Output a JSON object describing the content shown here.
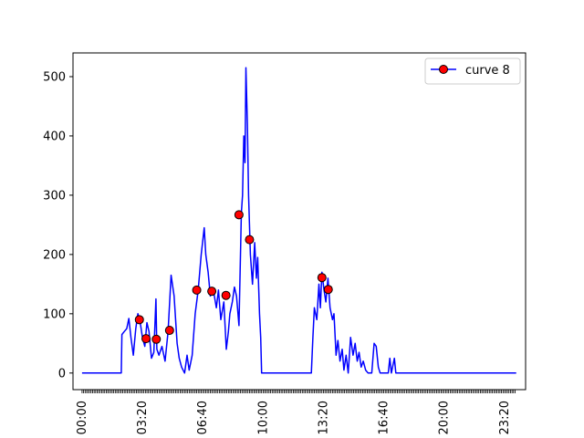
{
  "chart_data": {
    "type": "line",
    "title": "",
    "xlabel": "",
    "ylabel": "",
    "x_unit": "time of day (HH:MM)",
    "xlim": [
      "00:00",
      "23:59"
    ],
    "ylim": [
      -28,
      540
    ],
    "grid": false,
    "legend_position": "top-right",
    "x_ticks": [
      "00:00",
      "03:20",
      "06:40",
      "10:00",
      "13:20",
      "16:40",
      "20:00",
      "23:20"
    ],
    "y_ticks": [
      0,
      100,
      200,
      300,
      400,
      500
    ],
    "series": [
      {
        "name": "curve 8",
        "color": "#0000ff",
        "marker_color": "#ff0000",
        "marker_edge_color": "#000000",
        "line": [
          [
            "00:00",
            0
          ],
          [
            "02:10",
            0
          ],
          [
            "02:12",
            65
          ],
          [
            "02:20",
            70
          ],
          [
            "02:28",
            75
          ],
          [
            "02:35",
            92
          ],
          [
            "02:42",
            60
          ],
          [
            "02:50",
            30
          ],
          [
            "02:58",
            75
          ],
          [
            "03:05",
            100
          ],
          [
            "03:12",
            88
          ],
          [
            "03:20",
            60
          ],
          [
            "03:28",
            45
          ],
          [
            "03:35",
            85
          ],
          [
            "03:42",
            70
          ],
          [
            "03:50",
            25
          ],
          [
            "03:58",
            35
          ],
          [
            "04:05",
            125
          ],
          [
            "04:08",
            40
          ],
          [
            "04:15",
            30
          ],
          [
            "04:25",
            45
          ],
          [
            "04:35",
            20
          ],
          [
            "04:45",
            70
          ],
          [
            "04:55",
            165
          ],
          [
            "05:05",
            130
          ],
          [
            "05:15",
            50
          ],
          [
            "05:22",
            25
          ],
          [
            "05:30",
            10
          ],
          [
            "05:40",
            0
          ],
          [
            "05:48",
            30
          ],
          [
            "05:55",
            5
          ],
          [
            "06:05",
            30
          ],
          [
            "06:15",
            100
          ],
          [
            "06:25",
            140
          ],
          [
            "06:35",
            200
          ],
          [
            "06:45",
            245
          ],
          [
            "06:50",
            200
          ],
          [
            "06:58",
            170
          ],
          [
            "07:05",
            130
          ],
          [
            "07:15",
            140
          ],
          [
            "07:25",
            110
          ],
          [
            "07:32",
            140
          ],
          [
            "07:40",
            90
          ],
          [
            "07:50",
            120
          ],
          [
            "07:58",
            40
          ],
          [
            "08:05",
            70
          ],
          [
            "08:10",
            100
          ],
          [
            "08:18",
            120
          ],
          [
            "08:25",
            145
          ],
          [
            "08:32",
            130
          ],
          [
            "08:40",
            80
          ],
          [
            "08:48",
            270
          ],
          [
            "08:52",
            300
          ],
          [
            "08:56",
            400
          ],
          [
            "09:00",
            355
          ],
          [
            "09:03",
            515
          ],
          [
            "09:08",
            420
          ],
          [
            "09:12",
            300
          ],
          [
            "09:18",
            200
          ],
          [
            "09:25",
            150
          ],
          [
            "09:32",
            220
          ],
          [
            "09:38",
            160
          ],
          [
            "09:42",
            195
          ],
          [
            "09:48",
            100
          ],
          [
            "09:52",
            60
          ],
          [
            "09:55",
            0
          ],
          [
            "12:40",
            0
          ],
          [
            "12:45",
            60
          ],
          [
            "12:50",
            110
          ],
          [
            "12:58",
            90
          ],
          [
            "13:05",
            150
          ],
          [
            "13:10",
            110
          ],
          [
            "13:15",
            170
          ],
          [
            "13:22",
            140
          ],
          [
            "13:28",
            120
          ],
          [
            "13:35",
            160
          ],
          [
            "13:42",
            110
          ],
          [
            "13:50",
            90
          ],
          [
            "13:55",
            100
          ],
          [
            "14:02",
            30
          ],
          [
            "14:08",
            55
          ],
          [
            "14:15",
            20
          ],
          [
            "14:22",
            40
          ],
          [
            "14:28",
            5
          ],
          [
            "14:35",
            30
          ],
          [
            "14:42",
            0
          ],
          [
            "14:50",
            60
          ],
          [
            "14:58",
            30
          ],
          [
            "15:05",
            50
          ],
          [
            "15:12",
            20
          ],
          [
            "15:18",
            35
          ],
          [
            "15:25",
            10
          ],
          [
            "15:32",
            20
          ],
          [
            "15:40",
            5
          ],
          [
            "15:48",
            0
          ],
          [
            "16:00",
            0
          ],
          [
            "16:08",
            50
          ],
          [
            "16:15",
            45
          ],
          [
            "16:22",
            10
          ],
          [
            "16:28",
            0
          ],
          [
            "16:55",
            0
          ],
          [
            "17:00",
            25
          ],
          [
            "17:05",
            0
          ],
          [
            "17:15",
            25
          ],
          [
            "17:20",
            0
          ],
          [
            "23:59",
            0
          ]
        ],
        "markers": [
          [
            "03:10",
            90
          ],
          [
            "03:32",
            58
          ],
          [
            "04:06",
            57
          ],
          [
            "04:50",
            72
          ],
          [
            "06:20",
            140
          ],
          [
            "07:10",
            138
          ],
          [
            "07:57",
            131
          ],
          [
            "08:40",
            267
          ],
          [
            "09:15",
            225
          ],
          [
            "13:15",
            161
          ],
          [
            "13:36",
            141
          ]
        ]
      }
    ]
  }
}
